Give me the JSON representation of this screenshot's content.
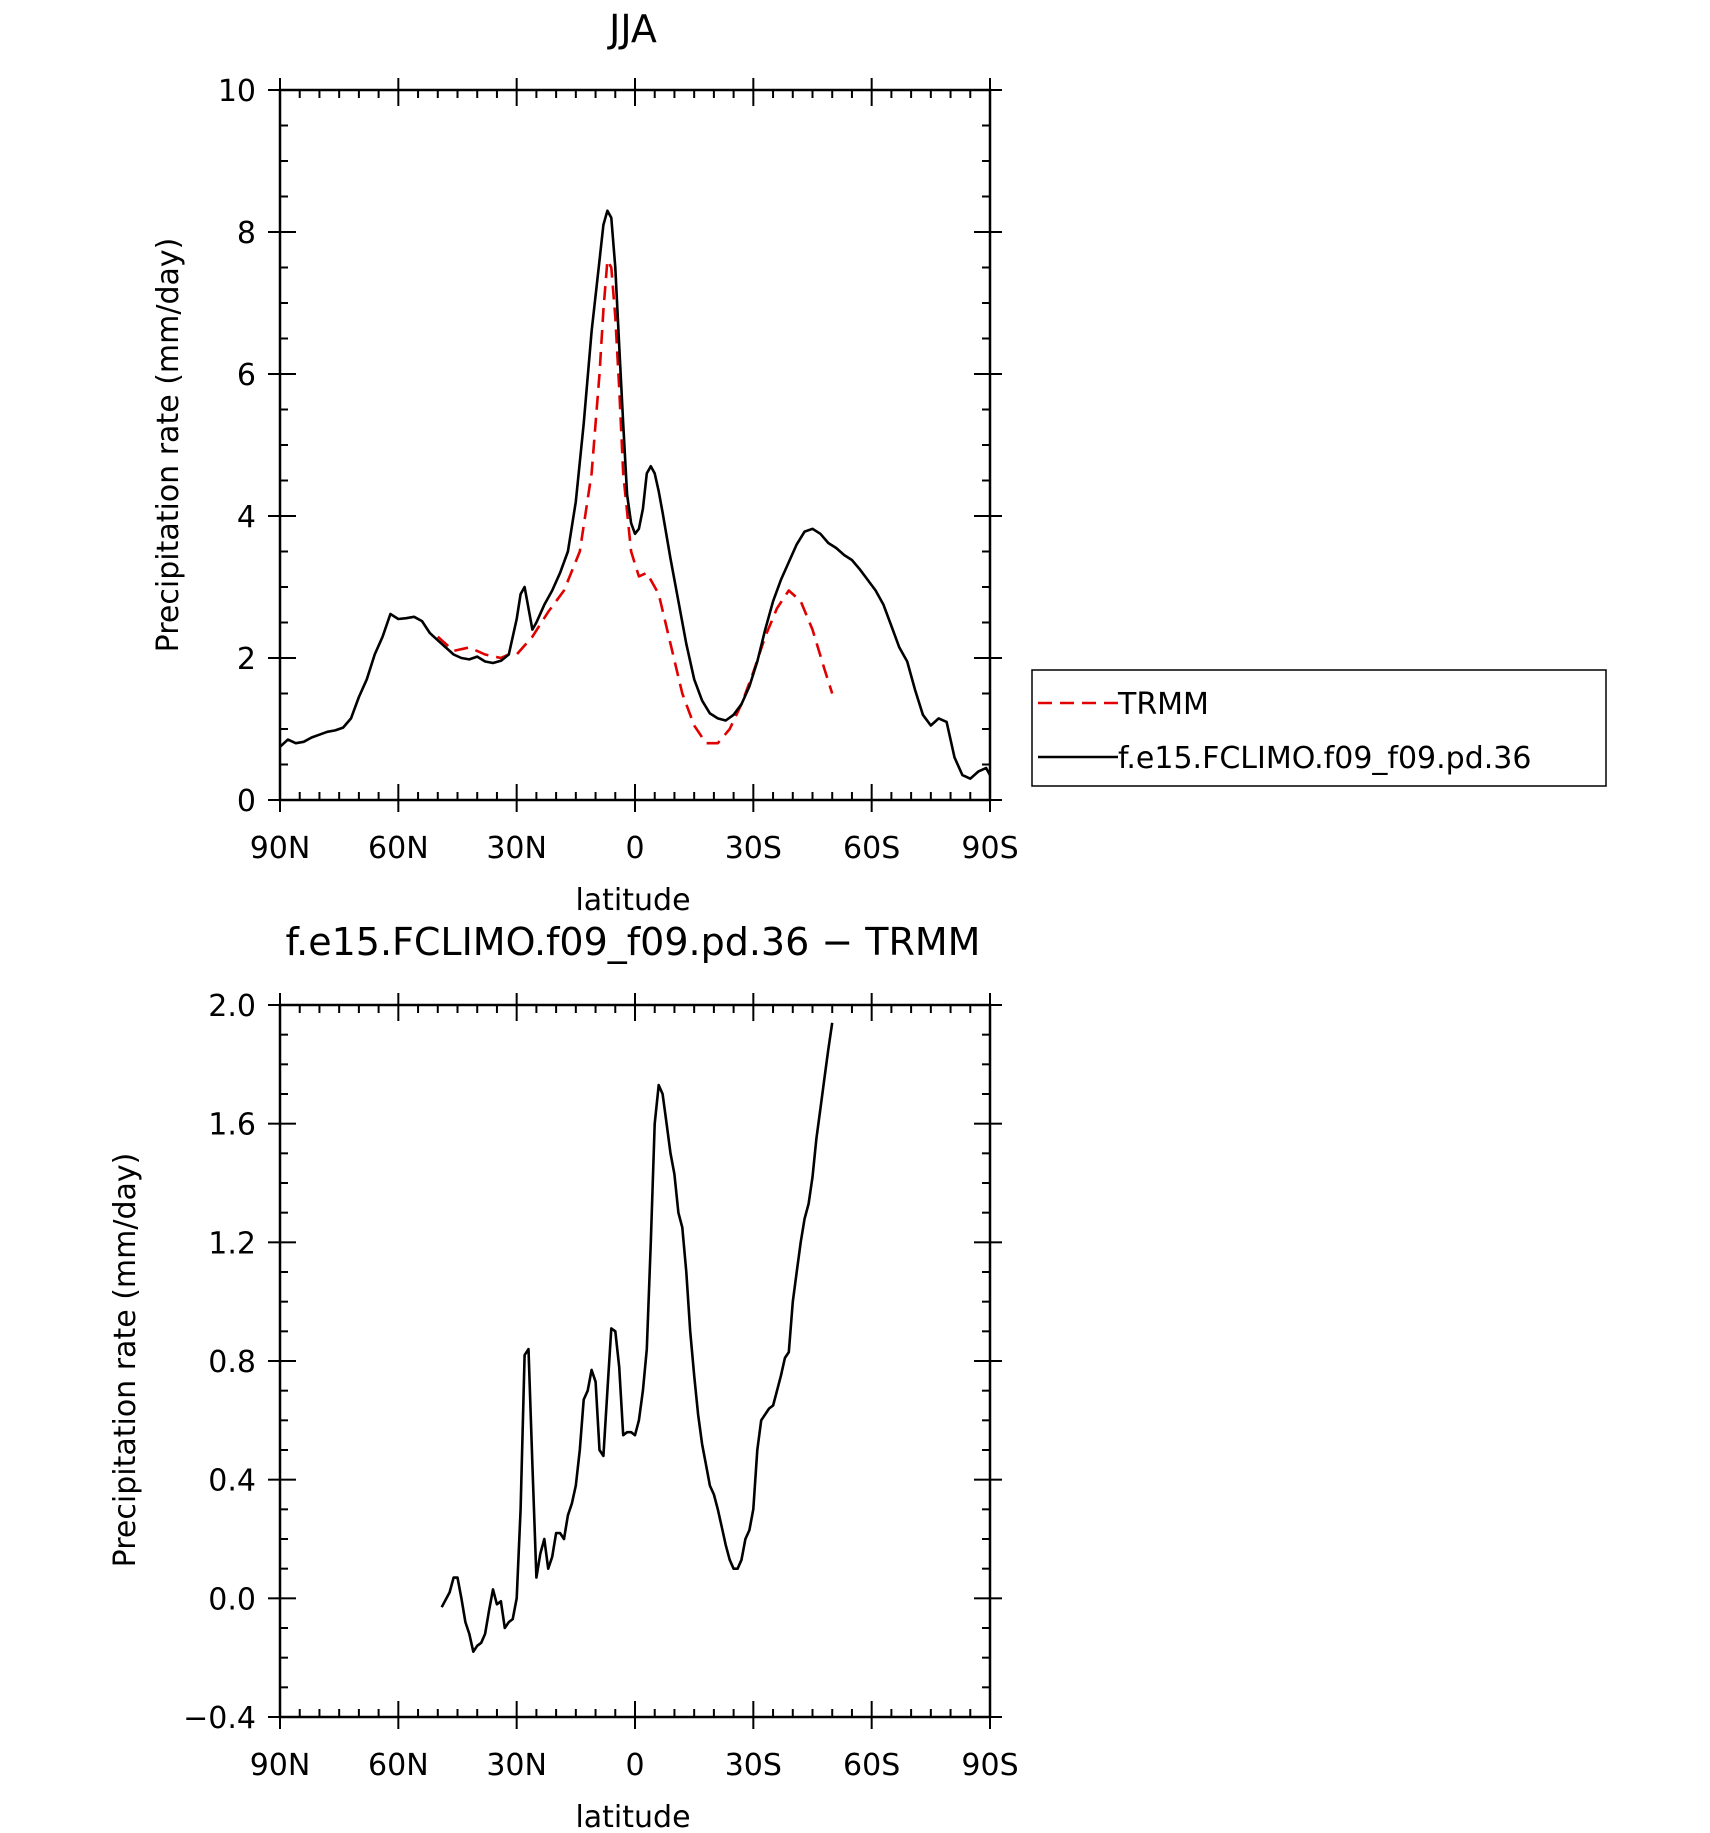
{
  "chart_data": [
    {
      "type": "line",
      "title": "JJA",
      "xlabel": "latitude",
      "ylabel": "Precipitation rate (mm/day)",
      "xlim": [
        90,
        -90
      ],
      "ylim": [
        0,
        10
      ],
      "xticks": [
        90,
        60,
        30,
        0,
        -30,
        -60,
        -90
      ],
      "xtick_labels": [
        "90N",
        "60N",
        "30N",
        "0",
        "30S",
        "60S",
        "90S"
      ],
      "yticks": [
        0,
        2,
        4,
        6,
        8,
        10
      ],
      "ytick_labels": [
        "0",
        "2",
        "4",
        "6",
        "8",
        "10"
      ],
      "legend": "right-outside",
      "series": [
        {
          "name": "TRMM",
          "color": "#e00000",
          "dash": "dashed",
          "x": [
            50,
            46,
            42,
            38,
            34,
            32,
            30,
            26,
            22,
            18,
            14,
            11,
            9,
            8,
            7,
            6,
            5,
            4,
            3,
            1,
            -1,
            -3,
            -6,
            -9,
            -12,
            -15,
            -18,
            -21,
            -24,
            -27,
            -30,
            -33,
            -36,
            -39,
            -42,
            -45,
            -48,
            -50
          ],
          "y": [
            2.3,
            2.1,
            2.15,
            2.05,
            2.0,
            2.05,
            2.05,
            2.3,
            2.65,
            2.95,
            3.5,
            4.6,
            6.0,
            6.9,
            7.6,
            7.5,
            6.8,
            5.8,
            4.6,
            3.5,
            3.15,
            3.2,
            2.9,
            2.2,
            1.5,
            1.05,
            0.8,
            0.8,
            1.0,
            1.35,
            1.8,
            2.3,
            2.7,
            2.95,
            2.8,
            2.4,
            1.85,
            1.5
          ]
        },
        {
          "name": "f.e15.FCLIMO.f09_f09.pd.36",
          "color": "#000000",
          "dash": "solid",
          "x": [
            90,
            88,
            86,
            84,
            82,
            80,
            78,
            76,
            74,
            72,
            70,
            68,
            66,
            64,
            62,
            60,
            58,
            56,
            54,
            52,
            50,
            48,
            46,
            44,
            42,
            40,
            38,
            36,
            34,
            32,
            30,
            29,
            28,
            27,
            26,
            25,
            23,
            21,
            19,
            17,
            15,
            13,
            11,
            9,
            8,
            7,
            6,
            5,
            4,
            3,
            2,
            1,
            0,
            -1,
            -2,
            -3,
            -4,
            -5,
            -6,
            -7,
            -9,
            -11,
            -13,
            -15,
            -17,
            -19,
            -21,
            -23,
            -25,
            -27,
            -29,
            -31,
            -33,
            -35,
            -37,
            -39,
            -41,
            -43,
            -45,
            -47,
            -49,
            -51,
            -53,
            -55,
            -57,
            -59,
            -61,
            -63,
            -65,
            -67,
            -69,
            -71,
            -73,
            -75,
            -77,
            -79,
            -81,
            -83,
            -85,
            -87,
            -89,
            -90
          ],
          "y": [
            0.75,
            0.85,
            0.8,
            0.82,
            0.88,
            0.92,
            0.96,
            0.98,
            1.02,
            1.15,
            1.45,
            1.7,
            2.05,
            2.3,
            2.62,
            2.55,
            2.56,
            2.58,
            2.52,
            2.35,
            2.25,
            2.15,
            2.05,
            2.0,
            1.98,
            2.02,
            1.95,
            1.93,
            1.96,
            2.05,
            2.55,
            2.9,
            3.0,
            2.7,
            2.4,
            2.5,
            2.75,
            2.95,
            3.2,
            3.5,
            4.2,
            5.3,
            6.6,
            7.6,
            8.1,
            8.3,
            8.2,
            7.5,
            6.4,
            5.3,
            4.3,
            3.9,
            3.75,
            3.82,
            4.1,
            4.6,
            4.7,
            4.6,
            4.35,
            4.05,
            3.4,
            2.8,
            2.2,
            1.7,
            1.4,
            1.22,
            1.15,
            1.12,
            1.2,
            1.35,
            1.6,
            1.95,
            2.4,
            2.8,
            3.1,
            3.35,
            3.6,
            3.78,
            3.82,
            3.75,
            3.62,
            3.55,
            3.45,
            3.38,
            3.25,
            3.1,
            2.95,
            2.75,
            2.45,
            2.15,
            1.95,
            1.55,
            1.2,
            1.05,
            1.15,
            1.1,
            0.6,
            0.35,
            0.3,
            0.4,
            0.45,
            0.35
          ]
        }
      ]
    },
    {
      "type": "line",
      "title": "f.e15.FCLIMO.f09_f09.pd.36 − TRMM",
      "xlabel": "latitude",
      "ylabel": "Precipitation rate (mm/day)",
      "xlim": [
        90,
        -90
      ],
      "ylim": [
        -0.4,
        2.0
      ],
      "xticks": [
        90,
        60,
        30,
        0,
        -30,
        -60,
        -90
      ],
      "xtick_labels": [
        "90N",
        "60N",
        "30N",
        "0",
        "30S",
        "60S",
        "90S"
      ],
      "yticks": [
        -0.4,
        0.0,
        0.4,
        0.8,
        1.2,
        1.6,
        2.0
      ],
      "ytick_labels": [
        "−0.4",
        "0.0",
        "0.4",
        "0.8",
        "1.2",
        "1.6",
        "2.0"
      ],
      "series": [
        {
          "color": "#000000",
          "dash": "solid",
          "x": [
            49,
            47,
            46,
            45,
            44,
            43,
            42,
            41,
            40,
            39,
            38,
            37,
            36,
            35,
            34,
            33,
            32,
            31,
            30,
            29,
            28,
            27,
            26,
            25,
            24,
            23,
            22,
            21,
            20,
            19,
            18,
            17,
            16,
            15,
            14,
            13,
            12,
            11,
            10,
            9,
            8,
            7,
            6,
            5,
            4,
            3,
            2,
            1,
            0,
            -1,
            -2,
            -3,
            -4,
            -5,
            -6,
            -7,
            -8,
            -9,
            -10,
            -11,
            -12,
            -13,
            -14,
            -15,
            -16,
            -17,
            -18,
            -19,
            -20,
            -21,
            -22,
            -23,
            -24,
            -25,
            -26,
            -27,
            -28,
            -29,
            -30,
            -31,
            -32,
            -33,
            -34,
            -35,
            -36,
            -37,
            -38,
            -39,
            -40,
            -41,
            -42,
            -43,
            -44,
            -45,
            -46,
            -47,
            -48,
            -49,
            -50
          ],
          "y": [
            -0.03,
            0.02,
            0.07,
            0.07,
            0.0,
            -0.08,
            -0.12,
            -0.18,
            -0.16,
            -0.15,
            -0.12,
            -0.04,
            0.03,
            -0.02,
            -0.01,
            -0.1,
            -0.08,
            -0.07,
            0.0,
            0.3,
            0.82,
            0.84,
            0.45,
            0.07,
            0.15,
            0.2,
            0.1,
            0.14,
            0.22,
            0.22,
            0.2,
            0.28,
            0.32,
            0.38,
            0.5,
            0.67,
            0.7,
            0.77,
            0.73,
            0.5,
            0.48,
            0.7,
            0.91,
            0.9,
            0.78,
            0.55,
            0.56,
            0.56,
            0.55,
            0.6,
            0.7,
            0.84,
            1.2,
            1.6,
            1.73,
            1.7,
            1.6,
            1.5,
            1.43,
            1.3,
            1.25,
            1.1,
            0.9,
            0.75,
            0.62,
            0.52,
            0.45,
            0.38,
            0.35,
            0.3,
            0.24,
            0.18,
            0.13,
            0.1,
            0.1,
            0.13,
            0.2,
            0.23,
            0.3,
            0.5,
            0.6,
            0.62,
            0.64,
            0.65,
            0.7,
            0.75,
            0.81,
            0.83,
            1.0,
            1.1,
            1.2,
            1.28,
            1.33,
            1.42,
            1.55,
            1.65,
            1.75,
            1.85,
            1.94
          ]
        }
      ]
    }
  ]
}
